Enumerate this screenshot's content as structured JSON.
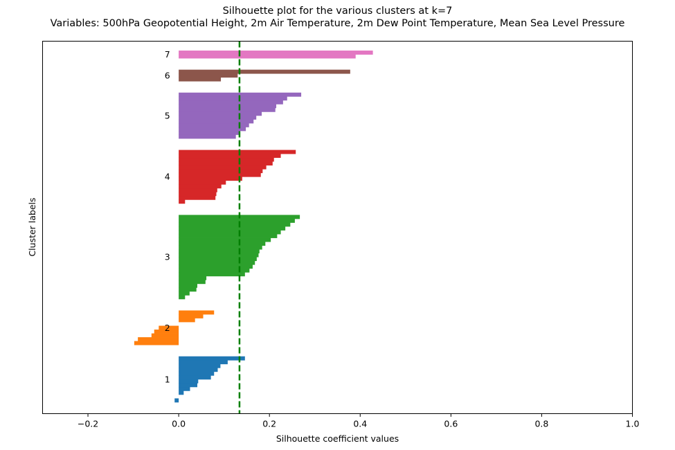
{
  "chart_data": {
    "type": "bar",
    "orientation": "horizontal",
    "title": "Silhouette plot for the various clusters at k=7",
    "subtitle": "Variables: 500hPa Geopotential Height, 2m Air Temperature, 2m Dew Point Temperature, Mean Sea Level Pressure",
    "xlabel": "Silhouette coefficient values",
    "ylabel": "Cluster labels",
    "xlim": [
      -0.3,
      1.0
    ],
    "xticks": [
      -0.2,
      0.0,
      0.2,
      0.4,
      0.6,
      0.8,
      1.0
    ],
    "xtick_labels": [
      "−0.2",
      "0.0",
      "0.2",
      "0.4",
      "0.6",
      "0.8",
      "1.0"
    ],
    "yticks": [],
    "grid": false,
    "reference_line": {
      "value": 0.134,
      "style": "dashed",
      "color": "#007f00"
    },
    "clusters": [
      {
        "label": "1",
        "color": "#1f77b4",
        "values": [
          0.146,
          0.108,
          0.092,
          0.086,
          0.078,
          0.071,
          0.043,
          0.041,
          0.025,
          0.011,
          0.0,
          -0.009
        ]
      },
      {
        "label": "2",
        "color": "#ff7f0e",
        "values": [
          0.078,
          0.054,
          0.036,
          0.0,
          -0.044,
          -0.054,
          -0.06,
          -0.09,
          -0.098
        ]
      },
      {
        "label": "3",
        "color": "#2ca02c",
        "values": [
          0.267,
          0.256,
          0.246,
          0.235,
          0.225,
          0.217,
          0.203,
          0.191,
          0.184,
          0.178,
          0.176,
          0.172,
          0.168,
          0.163,
          0.156,
          0.146,
          0.061,
          0.059,
          0.041,
          0.039,
          0.024,
          0.014
        ]
      },
      {
        "label": "4",
        "color": "#d62728",
        "values": [
          0.258,
          0.225,
          0.21,
          0.207,
          0.193,
          0.185,
          0.181,
          0.14,
          0.104,
          0.094,
          0.085,
          0.083,
          0.081,
          0.014
        ]
      },
      {
        "label": "5",
        "color": "#9467bd",
        "values": [
          0.27,
          0.239,
          0.23,
          0.215,
          0.213,
          0.183,
          0.171,
          0.165,
          0.155,
          0.148,
          0.135,
          0.126
        ]
      },
      {
        "label": "6",
        "color": "#8c564b",
        "values": [
          0.378,
          0.13,
          0.093
        ]
      },
      {
        "label": "7",
        "color": "#e377c2",
        "values": [
          0.428,
          0.39
        ]
      }
    ]
  }
}
